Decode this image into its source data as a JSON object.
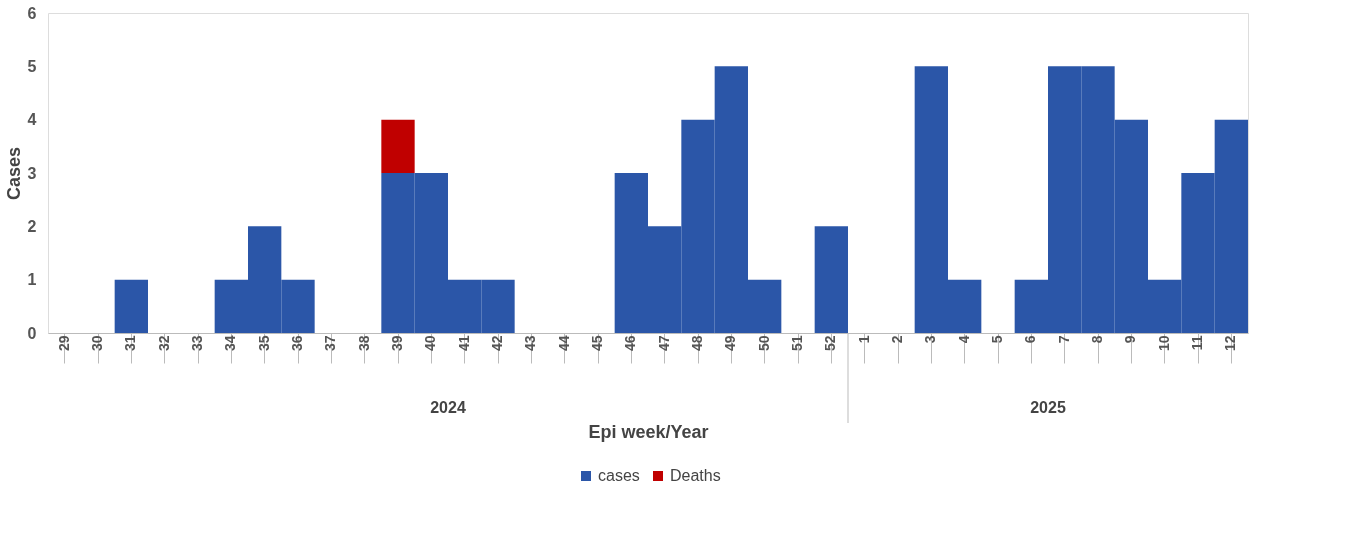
{
  "chart_data": {
    "type": "bar",
    "stacked": true,
    "xlabel": "Epi week/Year",
    "ylabel": "Cases",
    "categories": [
      "29",
      "30",
      "31",
      "32",
      "33",
      "34",
      "35",
      "36",
      "37",
      "38",
      "39",
      "40",
      "41",
      "42",
      "43",
      "44",
      "45",
      "46",
      "47",
      "48",
      "49",
      "50",
      "51",
      "52",
      "1",
      "2",
      "3",
      "4",
      "5",
      "6",
      "7",
      "8",
      "9",
      "10",
      "11",
      "12"
    ],
    "series": [
      {
        "name": "cases",
        "color": "#2b56a8",
        "values": [
          0,
          0,
          1,
          0,
          0,
          1,
          2,
          1,
          0,
          0,
          3,
          3,
          1,
          1,
          0,
          0,
          0,
          3,
          2,
          4,
          5,
          1,
          0,
          2,
          0,
          0,
          5,
          1,
          0,
          1,
          5,
          5,
          4,
          1,
          3,
          4
        ]
      },
      {
        "name": "Deaths",
        "color": "#c00000",
        "values": [
          0,
          0,
          0,
          0,
          0,
          0,
          0,
          0,
          0,
          0,
          1,
          0,
          0,
          0,
          0,
          0,
          0,
          0,
          0,
          0,
          0,
          0,
          0,
          0,
          0,
          0,
          0,
          0,
          0,
          0,
          0,
          0,
          0,
          0,
          0,
          0
        ]
      }
    ],
    "annotations": [
      "2024",
      "2025"
    ],
    "ylim": [
      0,
      6
    ],
    "yticks": [
      0,
      1,
      2,
      3,
      4,
      5,
      6
    ],
    "grid": false,
    "legend": "bottom"
  }
}
